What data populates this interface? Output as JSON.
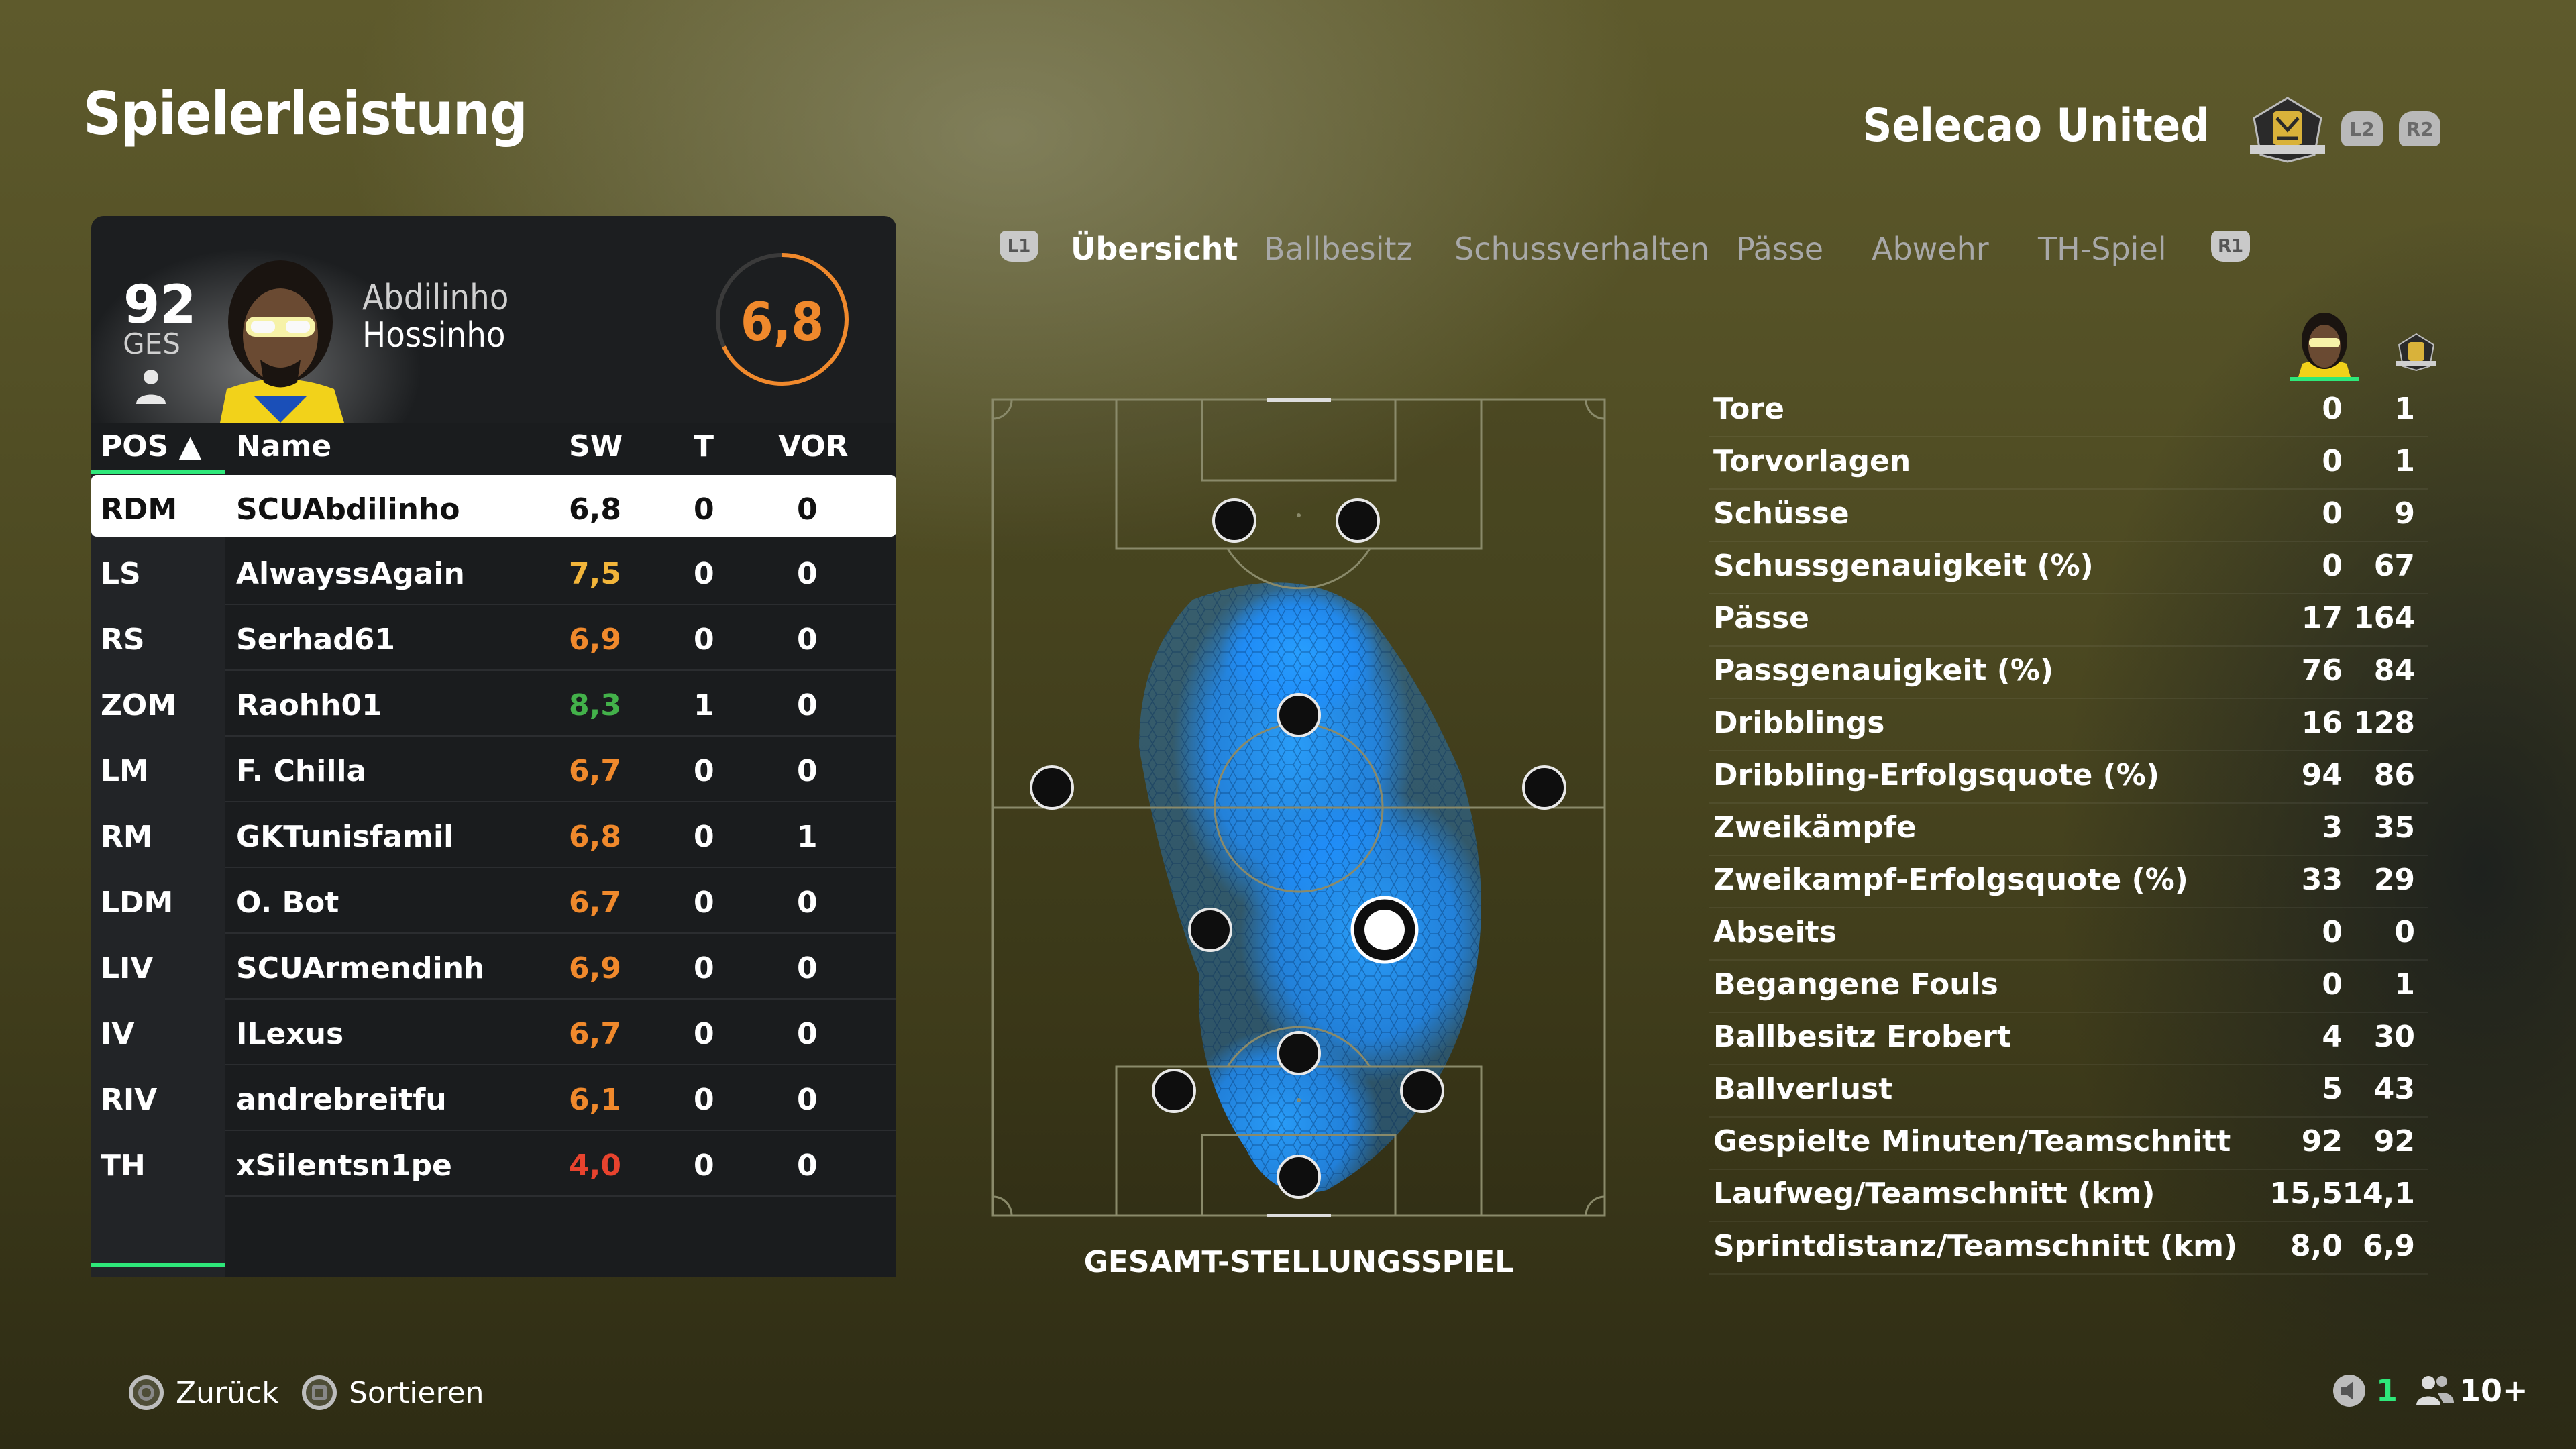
{
  "header": {
    "title": "Spielerleistung",
    "club_name": "Selecao United",
    "l2_label": "L2",
    "r2_label": "R2"
  },
  "player_card": {
    "overall": "92",
    "overall_label": "GES",
    "first_name": "Abdilinho",
    "last_name": "Hossinho",
    "rating": "6,8",
    "rating_fraction": 0.68
  },
  "table": {
    "headers": {
      "pos": "POS ▲",
      "name": "Name",
      "sw": "SW",
      "t": "T",
      "vor": "VOR"
    },
    "rows": [
      {
        "pos": "RDM",
        "name": "SCUAbdilinho",
        "sw": "6,8",
        "t": "0",
        "vor": "0",
        "color": "#111111"
      },
      {
        "pos": "LS",
        "name": "AlwayssAgain",
        "sw": "7,5",
        "t": "0",
        "vor": "0",
        "color": "#f2b53a"
      },
      {
        "pos": "RS",
        "name": "Serhad61",
        "sw": "6,9",
        "t": "0",
        "vor": "0",
        "color": "#f0892c"
      },
      {
        "pos": "ZOM",
        "name": "Raohh01",
        "sw": "8,3",
        "t": "1",
        "vor": "0",
        "color": "#43b14a"
      },
      {
        "pos": "LM",
        "name": "F. Chilla",
        "sw": "6,7",
        "t": "0",
        "vor": "0",
        "color": "#f0892c"
      },
      {
        "pos": "RM",
        "name": "GKTunisfamil",
        "sw": "6,8",
        "t": "0",
        "vor": "1",
        "color": "#f0892c"
      },
      {
        "pos": "LDM",
        "name": "O. Bot",
        "sw": "6,7",
        "t": "0",
        "vor": "0",
        "color": "#f0892c"
      },
      {
        "pos": "LIV",
        "name": "SCUArmendinh",
        "sw": "6,9",
        "t": "0",
        "vor": "0",
        "color": "#f0892c"
      },
      {
        "pos": "IV",
        "name": "ILexus",
        "sw": "6,7",
        "t": "0",
        "vor": "0",
        "color": "#f0892c"
      },
      {
        "pos": "RIV",
        "name": "andrebreitfu",
        "sw": "6,1",
        "t": "0",
        "vor": "0",
        "color": "#f0892c"
      },
      {
        "pos": "TH",
        "name": "xSilentsn1pe",
        "sw": "4,0",
        "t": "0",
        "vor": "0",
        "color": "#e8432e"
      }
    ]
  },
  "tabs": {
    "l1": "L1",
    "r1": "R1",
    "items": [
      {
        "label": "Übersicht",
        "active": true
      },
      {
        "label": "Ballbesitz",
        "active": false
      },
      {
        "label": "Schussverhalten",
        "active": false
      },
      {
        "label": "Pässe",
        "active": false
      },
      {
        "label": "Abwehr",
        "active": false
      },
      {
        "label": "TH-Spiel",
        "active": false
      }
    ]
  },
  "pitch": {
    "caption": "GESAMT-STELLUNGSSPIEL"
  },
  "stats": {
    "rows": [
      {
        "label": "Tore",
        "player": "0",
        "team": "1"
      },
      {
        "label": "Torvorlagen",
        "player": "0",
        "team": "1"
      },
      {
        "label": "Schüsse",
        "player": "0",
        "team": "9"
      },
      {
        "label": "Schussgenauigkeit (%)",
        "player": "0",
        "team": "67"
      },
      {
        "label": "Pässe",
        "player": "17",
        "team": "164"
      },
      {
        "label": "Passgenauigkeit (%)",
        "player": "76",
        "team": "84"
      },
      {
        "label": "Dribblings",
        "player": "16",
        "team": "128"
      },
      {
        "label": "Dribbling-Erfolgsquote (%)",
        "player": "94",
        "team": "86"
      },
      {
        "label": "Zweikämpfe",
        "player": "3",
        "team": "35"
      },
      {
        "label": "Zweikampf-Erfolgsquote (%)",
        "player": "33",
        "team": "29"
      },
      {
        "label": "Abseits",
        "player": "0",
        "team": "0"
      },
      {
        "label": "Begangene Fouls",
        "player": "0",
        "team": "1"
      },
      {
        "label": "Ballbesitz Erobert",
        "player": "4",
        "team": "30"
      },
      {
        "label": "Ballverlust",
        "player": "5",
        "team": "43"
      },
      {
        "label": "Gespielte Minuten/Teamschnitt",
        "player": "92",
        "team": "92"
      },
      {
        "label": "Laufweg/Teamschnitt (km)",
        "player": "15,5",
        "team": "14,1"
      },
      {
        "label": "Sprintdistanz/Teamschnitt (km)",
        "player": "8,0",
        "team": "6,9"
      }
    ]
  },
  "footer": {
    "back": "Zurück",
    "sort": "Sortieren",
    "mic_count": "1",
    "party_count": "10+"
  },
  "colors": {
    "accent_green": "#2ee87a",
    "rating_orange": "#f0892c",
    "heat_blue": "#1e8fff"
  }
}
